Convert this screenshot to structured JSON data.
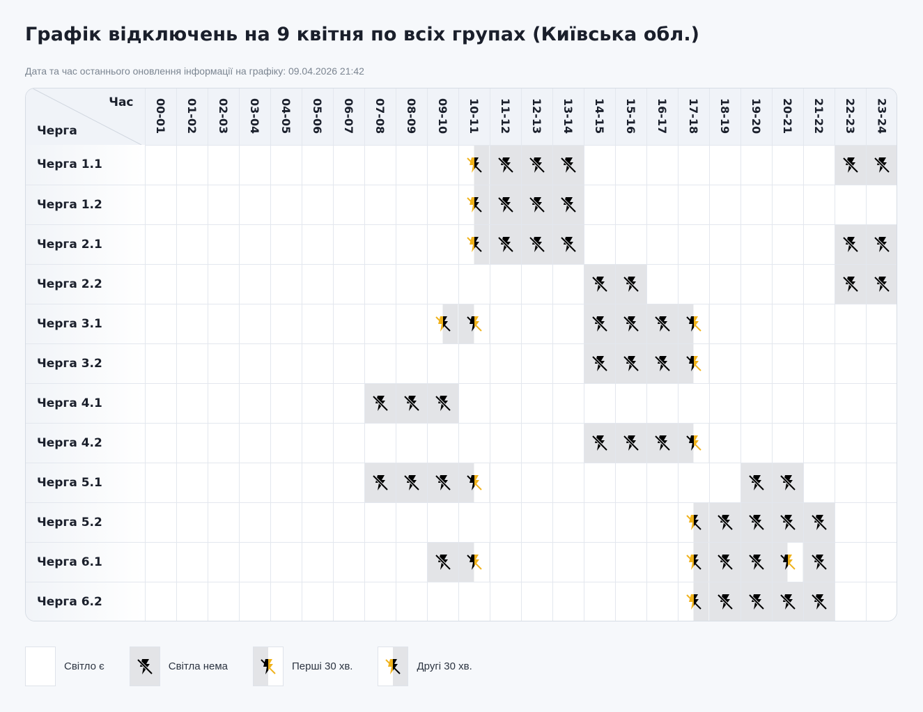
{
  "title": "Графік відключень на 9 квітня по всіх групах (Київська обл.)",
  "updated_text": "Дата та час останнього оновлення інформації на графіку: 09.04.2026 21:42",
  "table": {
    "corner": {
      "hour_label": "Час",
      "queue_label": "Черга"
    },
    "hours": [
      "00-01",
      "01-02",
      "02-03",
      "03-04",
      "04-05",
      "05-06",
      "06-07",
      "07-08",
      "08-09",
      "09-10",
      "10-11",
      "11-12",
      "12-13",
      "13-14",
      "14-15",
      "15-16",
      "16-17",
      "17-18",
      "18-19",
      "19-20",
      "20-21",
      "21-22",
      "22-23",
      "23-24"
    ],
    "rows": [
      {
        "label": "Черга 1.1",
        "cells": [
          "on",
          "on",
          "on",
          "on",
          "on",
          "on",
          "on",
          "on",
          "on",
          "on",
          "second",
          "off",
          "off",
          "off",
          "on",
          "on",
          "on",
          "on",
          "on",
          "on",
          "on",
          "on",
          "off",
          "off"
        ]
      },
      {
        "label": "Черга 1.2",
        "cells": [
          "on",
          "on",
          "on",
          "on",
          "on",
          "on",
          "on",
          "on",
          "on",
          "on",
          "second",
          "off",
          "off",
          "off",
          "on",
          "on",
          "on",
          "on",
          "on",
          "on",
          "on",
          "on",
          "on",
          "on"
        ]
      },
      {
        "label": "Черга 2.1",
        "cells": [
          "on",
          "on",
          "on",
          "on",
          "on",
          "on",
          "on",
          "on",
          "on",
          "on",
          "second",
          "off",
          "off",
          "off",
          "on",
          "on",
          "on",
          "on",
          "on",
          "on",
          "on",
          "on",
          "off",
          "off"
        ]
      },
      {
        "label": "Черга 2.2",
        "cells": [
          "on",
          "on",
          "on",
          "on",
          "on",
          "on",
          "on",
          "on",
          "on",
          "on",
          "on",
          "on",
          "on",
          "on",
          "off",
          "off",
          "on",
          "on",
          "on",
          "on",
          "on",
          "on",
          "off",
          "off"
        ]
      },
      {
        "label": "Черга 3.1",
        "cells": [
          "on",
          "on",
          "on",
          "on",
          "on",
          "on",
          "on",
          "on",
          "on",
          "second",
          "first",
          "on",
          "on",
          "on",
          "off",
          "off",
          "off",
          "first",
          "on",
          "on",
          "on",
          "on",
          "on",
          "on"
        ]
      },
      {
        "label": "Черга 3.2",
        "cells": [
          "on",
          "on",
          "on",
          "on",
          "on",
          "on",
          "on",
          "on",
          "on",
          "on",
          "on",
          "on",
          "on",
          "on",
          "off",
          "off",
          "off",
          "first",
          "on",
          "on",
          "on",
          "on",
          "on",
          "on"
        ]
      },
      {
        "label": "Черга 4.1",
        "cells": [
          "on",
          "on",
          "on",
          "on",
          "on",
          "on",
          "on",
          "off",
          "off",
          "off",
          "on",
          "on",
          "on",
          "on",
          "on",
          "on",
          "on",
          "on",
          "on",
          "on",
          "on",
          "on",
          "on",
          "on"
        ]
      },
      {
        "label": "Черга 4.2",
        "cells": [
          "on",
          "on",
          "on",
          "on",
          "on",
          "on",
          "on",
          "on",
          "on",
          "on",
          "on",
          "on",
          "on",
          "on",
          "off",
          "off",
          "off",
          "first",
          "on",
          "on",
          "on",
          "on",
          "on",
          "on"
        ]
      },
      {
        "label": "Черга 5.1",
        "cells": [
          "on",
          "on",
          "on",
          "on",
          "on",
          "on",
          "on",
          "off",
          "off",
          "off",
          "first",
          "on",
          "on",
          "on",
          "on",
          "on",
          "on",
          "on",
          "on",
          "off",
          "off",
          "on",
          "on",
          "on"
        ]
      },
      {
        "label": "Черга 5.2",
        "cells": [
          "on",
          "on",
          "on",
          "on",
          "on",
          "on",
          "on",
          "on",
          "on",
          "on",
          "on",
          "on",
          "on",
          "on",
          "on",
          "on",
          "on",
          "second",
          "off",
          "off",
          "off",
          "off",
          "on",
          "on"
        ]
      },
      {
        "label": "Черга 6.1",
        "cells": [
          "on",
          "on",
          "on",
          "on",
          "on",
          "on",
          "on",
          "on",
          "on",
          "off",
          "first",
          "on",
          "on",
          "on",
          "on",
          "on",
          "on",
          "second",
          "off",
          "off",
          "first",
          "off",
          "on",
          "on"
        ]
      },
      {
        "label": "Черга 6.2",
        "cells": [
          "on",
          "on",
          "on",
          "on",
          "on",
          "on",
          "on",
          "on",
          "on",
          "on",
          "on",
          "on",
          "on",
          "on",
          "on",
          "on",
          "on",
          "second",
          "off",
          "off",
          "off",
          "off",
          "on",
          "on"
        ]
      }
    ]
  },
  "legend": [
    {
      "state": "on",
      "label": "Світло є",
      "icon": "none"
    },
    {
      "state": "off",
      "label": "Світла нема",
      "icon": "power-off-icon"
    },
    {
      "state": "first",
      "label": "Перші 30 хв.",
      "icon": "power-off-half-icon"
    },
    {
      "state": "second",
      "label": "Другі 30 хв.",
      "icon": "power-off-half-icon"
    }
  ],
  "colors": {
    "outage_bg": "#e3e4e7",
    "power_bg": "#ffffff",
    "icon_dark": "#000000",
    "icon_accent": "#f0b21b"
  }
}
